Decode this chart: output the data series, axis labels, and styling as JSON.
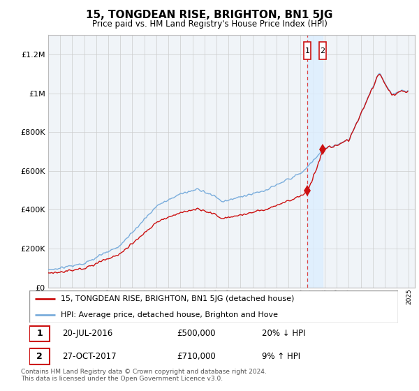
{
  "title": "15, TONGDEAN RISE, BRIGHTON, BN1 5JG",
  "subtitle": "Price paid vs. HM Land Registry's House Price Index (HPI)",
  "xlim": [
    1995.0,
    2025.5
  ],
  "ylim": [
    0,
    1300000
  ],
  "yticks": [
    0,
    200000,
    400000,
    600000,
    800000,
    1000000,
    1200000
  ],
  "ytick_labels": [
    "£0",
    "£200K",
    "£400K",
    "£600K",
    "£800K",
    "£1M",
    "£1.2M"
  ],
  "hpi_color": "#7aaddc",
  "price_color": "#cc1111",
  "dashed_color": "#dd4444",
  "shade_color": "#ddeeff",
  "background_color": "#f0f4f8",
  "grid_color": "#cccccc",
  "transaction1_x": 2016.55,
  "transaction1_y": 500000,
  "transaction2_x": 2017.83,
  "transaction2_y": 710000,
  "legend_line1": "15, TONGDEAN RISE, BRIGHTON, BN1 5JG (detached house)",
  "legend_line2": "HPI: Average price, detached house, Brighton and Hove",
  "note1_date": "20-JUL-2016",
  "note1_price": "£500,000",
  "note1_pct": "20% ↓ HPI",
  "note2_date": "27-OCT-2017",
  "note2_price": "£710,000",
  "note2_pct": "9% ↑ HPI",
  "footer": "Contains HM Land Registry data © Crown copyright and database right 2024.\nThis data is licensed under the Open Government Licence v3.0."
}
